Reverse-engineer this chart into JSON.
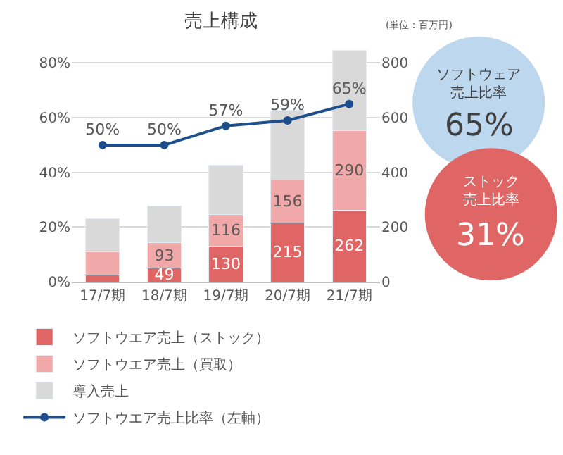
{
  "chart_data": {
    "type": "bar",
    "title": "売上構成",
    "stacked": true,
    "categories": [
      "17/7期",
      "18/7期",
      "19/7期",
      "20/7期",
      "21/7期"
    ],
    "series": [
      {
        "name": "ソフトウエア売上（ストック）",
        "color": "#e06666",
        "axis": "y2",
        "values": [
          25,
          49,
          130,
          215,
          262
        ],
        "value_labels": [
          null,
          "49",
          "130",
          "215",
          "262"
        ]
      },
      {
        "name": "ソフトウエア売上（買取）",
        "color": "#f0a8a8",
        "axis": "y2",
        "values": [
          85,
          93,
          116,
          156,
          290
        ],
        "value_labels": [
          null,
          "93",
          "116",
          "156",
          "290"
        ]
      },
      {
        "name": "導入売上",
        "color": "#d9d9d9",
        "axis": "y2",
        "values": [
          120,
          135,
          180,
          255,
          295
        ]
      },
      {
        "name": "ソフトウエア売上比率（左軸）",
        "type": "line",
        "color": "#1f4e8c",
        "axis": "y",
        "marker": "circle",
        "values": [
          50,
          50,
          57,
          59,
          65
        ],
        "value_labels": [
          "50%",
          "50%",
          "57%",
          "59%",
          "65%"
        ]
      }
    ],
    "ylim": [
      0,
      85
    ],
    "yticks": [
      {
        "value": 0,
        "label": "0%"
      },
      {
        "value": 20,
        "label": "20%"
      },
      {
        "value": 40,
        "label": "40%"
      },
      {
        "value": 60,
        "label": "60%"
      },
      {
        "value": 80,
        "label": "80%"
      }
    ],
    "y2lim": [
      0,
      850
    ],
    "y2ticks": [
      0,
      200,
      400,
      600,
      800
    ],
    "grid": "y",
    "legend": "bottom",
    "annotations": [
      "(単位：百万円)",
      "ソフトウェア売上比率",
      "65%",
      "ストック売上比率",
      "31%"
    ]
  }
}
